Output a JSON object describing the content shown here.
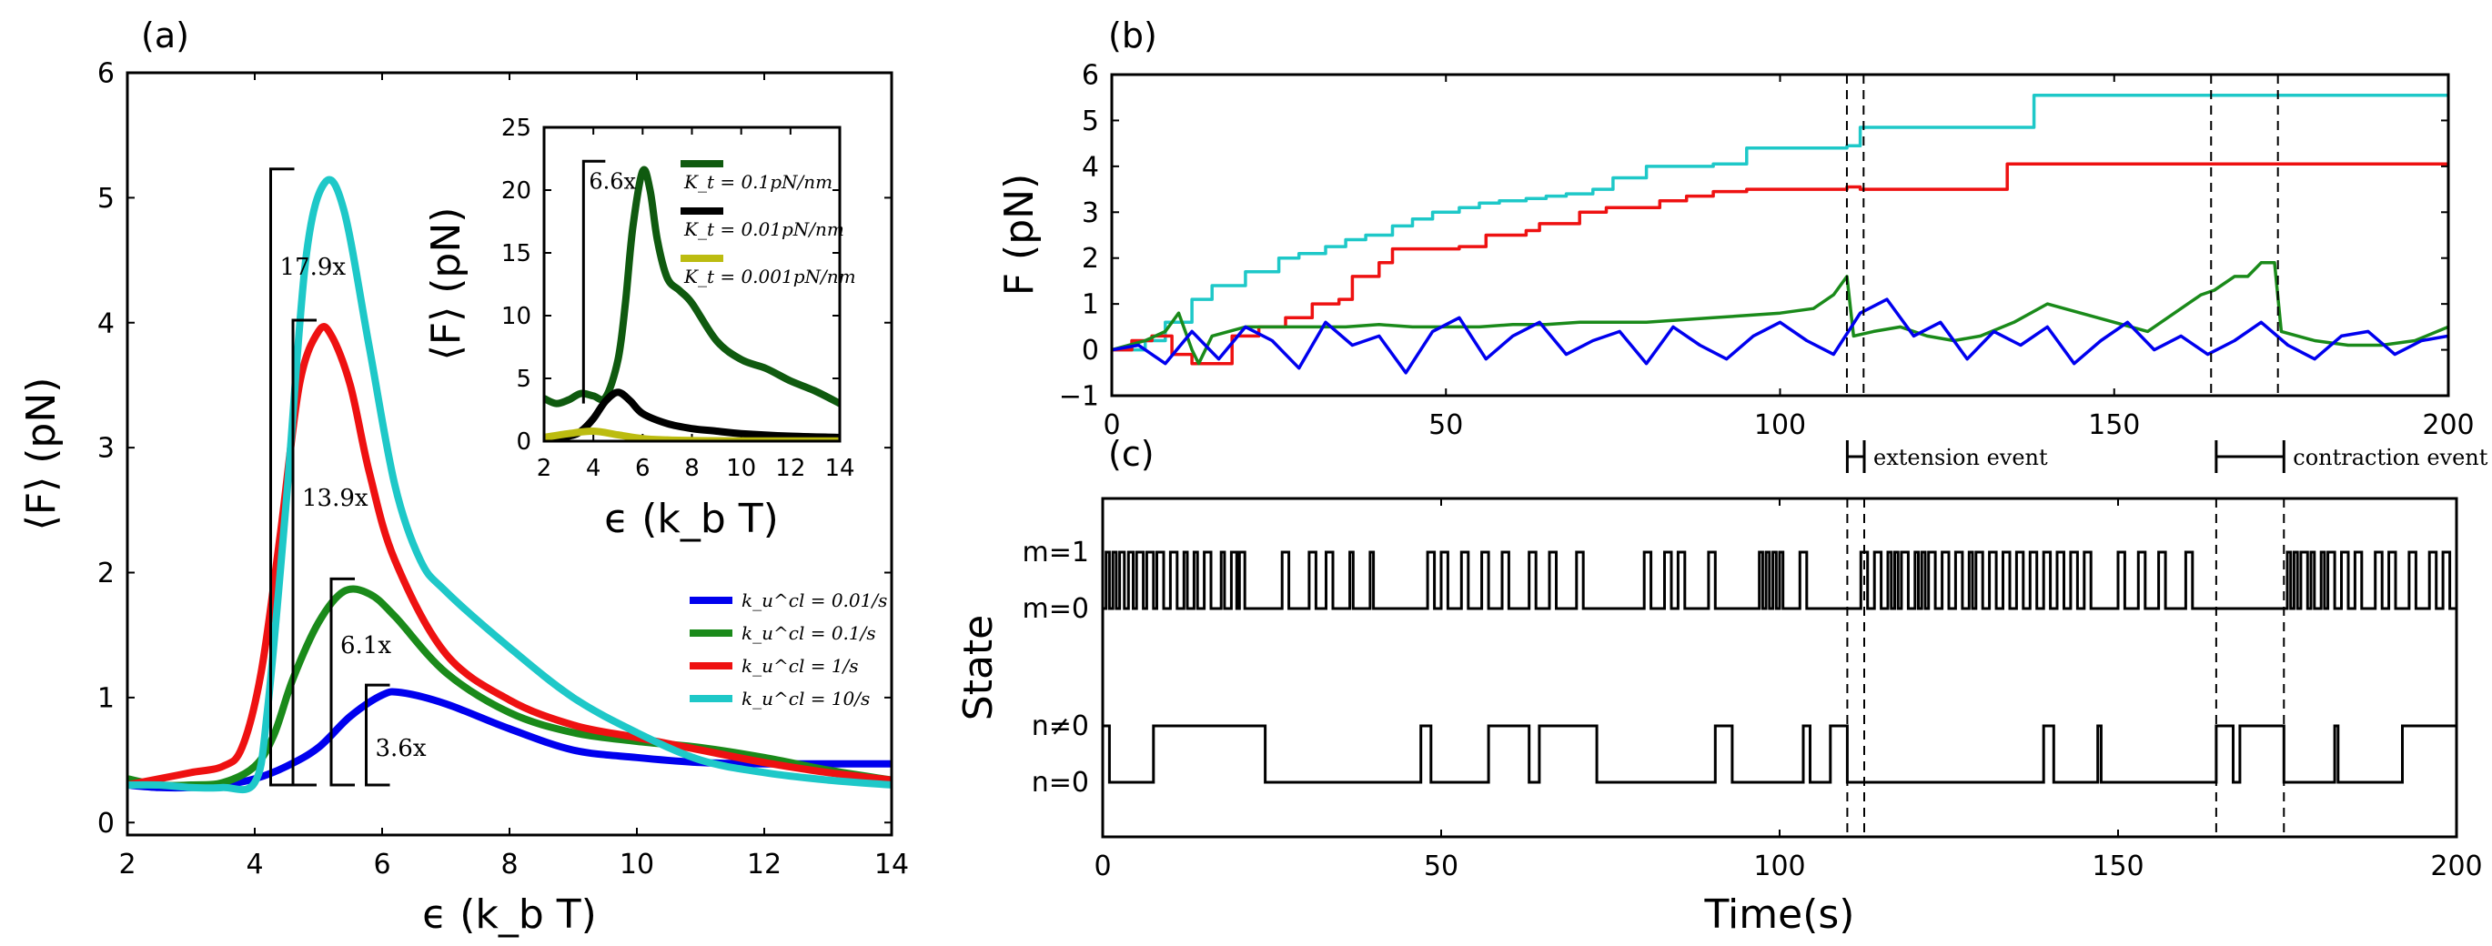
{
  "chart_data": [
    {
      "id": "a",
      "type": "line",
      "panel_label": "(a)",
      "xlabel": "ϵ (k_b T)",
      "ylabel": "⟨F⟩ (pN)",
      "xlim": [
        2,
        14
      ],
      "ylim": [
        -0.1,
        6
      ],
      "xticks": [
        "2",
        "4",
        "6",
        "8",
        "10",
        "12",
        "14"
      ],
      "yticks": [
        "0",
        "1",
        "2",
        "3",
        "4",
        "5",
        "6"
      ],
      "legend": [
        "k_u^cl = 0.01/s",
        "k_u^cl = 0.1/s",
        "k_u^cl = 1/s",
        "k_u^cl = 10/s"
      ],
      "series": [
        {
          "name": "k_u^cl = 0.01/s",
          "color": "#0000ee",
          "x": [
            2,
            2.5,
            3,
            3.5,
            4,
            4.5,
            5,
            5.5,
            6,
            6.3,
            7,
            8,
            9,
            10,
            11,
            12,
            13,
            14
          ],
          "y": [
            0.3,
            0.28,
            0.28,
            0.3,
            0.35,
            0.45,
            0.6,
            0.85,
            1.02,
            1.04,
            0.95,
            0.75,
            0.58,
            0.52,
            0.48,
            0.47,
            0.47,
            0.47
          ]
        },
        {
          "name": "k_u^cl = 0.1/s",
          "color": "#1a8a1a",
          "x": [
            2,
            2.5,
            3,
            3.5,
            4,
            4.3,
            4.6,
            5,
            5.4,
            5.8,
            6.2,
            7,
            8,
            9,
            10,
            11,
            12,
            13,
            14
          ],
          "y": [
            0.35,
            0.3,
            0.3,
            0.32,
            0.45,
            0.7,
            1.15,
            1.6,
            1.85,
            1.83,
            1.65,
            1.2,
            0.88,
            0.72,
            0.65,
            0.6,
            0.52,
            0.42,
            0.34
          ]
        },
        {
          "name": "k_u^cl = 1/s",
          "color": "#ee1111",
          "x": [
            2,
            2.5,
            3,
            3.5,
            3.8,
            4.1,
            4.4,
            4.7,
            5,
            5.2,
            5.5,
            5.8,
            6.2,
            7,
            8,
            9,
            10,
            11,
            12,
            13,
            14
          ],
          "y": [
            0.3,
            0.35,
            0.4,
            0.45,
            0.6,
            1.2,
            2.3,
            3.5,
            3.93,
            3.9,
            3.5,
            2.8,
            2.1,
            1.35,
            0.98,
            0.78,
            0.68,
            0.58,
            0.48,
            0.4,
            0.34
          ]
        },
        {
          "name": "k_u^cl = 10/s",
          "color": "#1ec8c8",
          "x": [
            2,
            2.5,
            3,
            3.5,
            4,
            4.2,
            4.5,
            4.8,
            5.1,
            5.4,
            5.8,
            6.2,
            6.6,
            7,
            8,
            9,
            10,
            11,
            12,
            13,
            14
          ],
          "y": [
            0.3,
            0.3,
            0.28,
            0.28,
            0.32,
            0.9,
            2.6,
            4.5,
            5.12,
            4.9,
            3.8,
            2.7,
            2.1,
            1.85,
            1.4,
            1.0,
            0.72,
            0.5,
            0.4,
            0.34,
            0.3
          ]
        }
      ],
      "annotations": [
        "17.9x",
        "13.9x",
        "6.1x",
        "3.6x"
      ],
      "inset": {
        "type": "line",
        "ylabel": "⟨F⟩ (pN)",
        "xlabel": "ϵ (k_b T)",
        "xlim": [
          2,
          14
        ],
        "ylim": [
          0,
          25
        ],
        "xticks": [
          "2",
          "4",
          "6",
          "8",
          "10",
          "12",
          "14"
        ],
        "yticks": [
          "0",
          "5",
          "10",
          "15",
          "20",
          "25"
        ],
        "annotation": "6.6x",
        "legend": [
          "K_t = 0.1pN/nm",
          "K_t = 0.01pN/nm",
          "K_t = 0.001pN/nm"
        ],
        "series": [
          {
            "name": "K_t = 0.1pN/nm",
            "color": "#0f5a0f",
            "x": [
              2,
              2.5,
              3,
              3.5,
              4,
              4.5,
              5,
              5.3,
              5.6,
              6,
              6.3,
              6.6,
              7,
              7.5,
              8,
              9,
              10,
              11,
              12,
              13,
              14
            ],
            "y": [
              3.4,
              3.0,
              3.3,
              3.8,
              3.6,
              3.5,
              6.5,
              11,
              17,
              21.5,
              20,
              16,
              13,
              12,
              11,
              8,
              6.5,
              5.8,
              4.8,
              4.0,
              3.0
            ]
          },
          {
            "name": "K_t = 0.01pN/nm",
            "color": "#000000",
            "x": [
              2,
              3,
              3.5,
              4,
              4.5,
              5,
              5.5,
              6,
              7,
              8,
              9,
              10,
              12,
              14
            ],
            "y": [
              0.3,
              0.4,
              0.8,
              1.8,
              3.2,
              3.9,
              3.2,
              2.2,
              1.4,
              1.0,
              0.8,
              0.6,
              0.4,
              0.3
            ]
          },
          {
            "name": "K_t = 0.001pN/nm",
            "color": "#bcbc10",
            "x": [
              2,
              3,
              4,
              5,
              6,
              7,
              8,
              10,
              12,
              14
            ],
            "y": [
              0.3,
              0.6,
              0.8,
              0.5,
              0.2,
              0.1,
              0.05,
              0.02,
              0.02,
              0.02
            ]
          }
        ]
      }
    },
    {
      "id": "b",
      "type": "line",
      "panel_label": "(b)",
      "ylabel": "F (pN)",
      "xlim": [
        0,
        200
      ],
      "ylim": [
        -1,
        6
      ],
      "xticks": [
        "0",
        "50",
        "100",
        "150",
        "200"
      ],
      "yticks": [
        "-1",
        "0",
        "1",
        "2",
        "3",
        "4",
        "5",
        "6"
      ],
      "vlines": [
        110,
        112.5,
        164.5,
        174.5
      ],
      "series": [
        {
          "name": "cyan",
          "color": "#1ec8c8",
          "x": [
            0,
            5,
            8,
            12,
            15,
            20,
            25,
            28,
            32,
            35,
            38,
            42,
            45,
            48,
            52,
            55,
            58,
            62,
            65,
            68,
            72,
            75,
            80,
            85,
            90,
            95,
            98,
            110,
            112,
            136,
            138,
            200
          ],
          "y": [
            0,
            0.2,
            0.6,
            1.1,
            1.4,
            1.7,
            2.0,
            2.1,
            2.25,
            2.4,
            2.5,
            2.7,
            2.85,
            3.0,
            3.1,
            3.2,
            3.25,
            3.3,
            3.35,
            3.4,
            3.5,
            3.75,
            4.0,
            4.0,
            4.05,
            4.4,
            4.4,
            4.45,
            4.85,
            4.85,
            5.55,
            5.55
          ]
        },
        {
          "name": "red",
          "color": "#ee1111",
          "x": [
            0,
            3,
            6,
            9,
            12,
            18,
            22,
            26,
            30,
            34,
            36,
            40,
            42,
            48,
            52,
            56,
            60,
            62,
            64,
            68,
            70,
            72,
            74,
            80,
            82,
            86,
            90,
            95,
            99,
            100,
            110,
            112,
            118,
            120,
            125,
            132,
            134,
            200
          ],
          "y": [
            0,
            0.2,
            0.3,
            -0.1,
            -0.3,
            0.3,
            0.5,
            0.7,
            1.0,
            1.1,
            1.6,
            1.9,
            2.2,
            2.2,
            2.25,
            2.5,
            2.5,
            2.6,
            2.75,
            2.75,
            3.0,
            3.0,
            3.1,
            3.1,
            3.25,
            3.35,
            3.45,
            3.5,
            3.5,
            3.5,
            3.55,
            3.5,
            3.5,
            3.5,
            3.5,
            3.5,
            4.05,
            4.05
          ]
        },
        {
          "name": "green",
          "color": "#1a8a1a",
          "x": [
            0,
            5,
            8,
            10,
            12,
            13,
            15,
            20,
            25,
            30,
            35,
            40,
            45,
            50,
            55,
            60,
            65,
            70,
            75,
            80,
            85,
            90,
            95,
            100,
            105,
            108,
            110,
            111,
            114,
            118,
            122,
            126,
            130,
            135,
            140,
            145,
            150,
            155,
            160,
            163,
            165,
            168,
            170,
            172,
            174,
            175,
            180,
            185,
            190,
            195,
            200
          ],
          "y": [
            0,
            0.2,
            0.4,
            0.8,
            0.0,
            -0.3,
            0.3,
            0.5,
            0.5,
            0.5,
            0.5,
            0.55,
            0.5,
            0.5,
            0.5,
            0.55,
            0.55,
            0.6,
            0.6,
            0.6,
            0.65,
            0.7,
            0.75,
            0.8,
            0.9,
            1.2,
            1.6,
            0.3,
            0.4,
            0.5,
            0.3,
            0.2,
            0.3,
            0.6,
            1.0,
            0.8,
            0.6,
            0.4,
            0.9,
            1.2,
            1.3,
            1.6,
            1.6,
            1.9,
            1.9,
            0.4,
            0.2,
            0.1,
            0.1,
            0.2,
            0.5
          ]
        },
        {
          "name": "blue",
          "color": "#0000ee",
          "x": [
            0,
            4,
            8,
            12,
            16,
            20,
            24,
            28,
            32,
            36,
            40,
            44,
            48,
            52,
            56,
            60,
            64,
            68,
            72,
            76,
            80,
            84,
            88,
            92,
            96,
            100,
            104,
            108,
            112,
            116,
            120,
            124,
            128,
            132,
            136,
            140,
            144,
            148,
            152,
            156,
            160,
            164,
            168,
            172,
            176,
            180,
            184,
            188,
            192,
            196,
            200
          ],
          "y": [
            0,
            0.1,
            -0.3,
            0.4,
            -0.2,
            0.5,
            0.2,
            -0.4,
            0.6,
            0.1,
            0.3,
            -0.5,
            0.4,
            0.7,
            -0.2,
            0.3,
            0.6,
            -0.1,
            0.2,
            0.4,
            -0.3,
            0.5,
            0.1,
            -0.2,
            0.3,
            0.6,
            0.2,
            -0.1,
            0.8,
            1.1,
            0.3,
            0.6,
            -0.2,
            0.4,
            0.1,
            0.5,
            -0.3,
            0.2,
            0.6,
            0.0,
            0.3,
            -0.1,
            0.2,
            0.6,
            0.1,
            -0.2,
            0.3,
            0.4,
            -0.1,
            0.2,
            0.3
          ]
        }
      ]
    },
    {
      "id": "c",
      "type": "line",
      "panel_label": "(c)",
      "xlabel": "Time(s)",
      "ylabel": "State",
      "xlim": [
        0,
        200
      ],
      "xticks": [
        "0",
        "50",
        "100",
        "150",
        "200"
      ],
      "ylevels": [
        "m=1",
        "m=0",
        "n≠0",
        "n=0"
      ],
      "vlines": [
        110,
        112.5,
        164.5,
        174.5
      ],
      "events": [
        {
          "label": "extension event",
          "start": 110,
          "end": 112.5
        },
        {
          "label": "contraction event",
          "start": 164.5,
          "end": 174.5
        }
      ],
      "m_switches": [
        0,
        0.5,
        1,
        1.5,
        2,
        2.5,
        3.2,
        3.8,
        4.5,
        5,
        6,
        6.5,
        7.5,
        8,
        9,
        10,
        11,
        12,
        12.5,
        13.5,
        14,
        15,
        16,
        17.5,
        18,
        19,
        19.8,
        20.2,
        21,
        26.5,
        27.5,
        30.5,
        31.5,
        33,
        34,
        36.5,
        37,
        39.5,
        40,
        48,
        49,
        50,
        51,
        53,
        54,
        56,
        57,
        59,
        60,
        63,
        64,
        66,
        67,
        70,
        71,
        80,
        81,
        83,
        84,
        85,
        86,
        89.5,
        90.5,
        97,
        97.5,
        98,
        98.5,
        99,
        99.5,
        100,
        100.5,
        103,
        104,
        112,
        113,
        114,
        115,
        116,
        116.5,
        117,
        117.5,
        118,
        119,
        120,
        120.5,
        121,
        121.5,
        122,
        123,
        124,
        125,
        126,
        127,
        128,
        128.5,
        129,
        130,
        131,
        132,
        133,
        134,
        135,
        136,
        137,
        138,
        139,
        140,
        141,
        142,
        143,
        144,
        145,
        146,
        150,
        151,
        153,
        154,
        156,
        157,
        160,
        161,
        175,
        175.5,
        176,
        176.5,
        177,
        178,
        178.5,
        179,
        180,
        180.5,
        181,
        182,
        183,
        184,
        185,
        186,
        188,
        189,
        190,
        191,
        193,
        194,
        196,
        197,
        198,
        199
      ],
      "n_switches": [
        0,
        1,
        7.5,
        24,
        47,
        48.5,
        57,
        63,
        64.5,
        73,
        90.5,
        93,
        103.5,
        104.5,
        107.5,
        110,
        139,
        140.5,
        147,
        147.5,
        164.5,
        167,
        168,
        174.5,
        182,
        182.5,
        192
      ]
    }
  ]
}
